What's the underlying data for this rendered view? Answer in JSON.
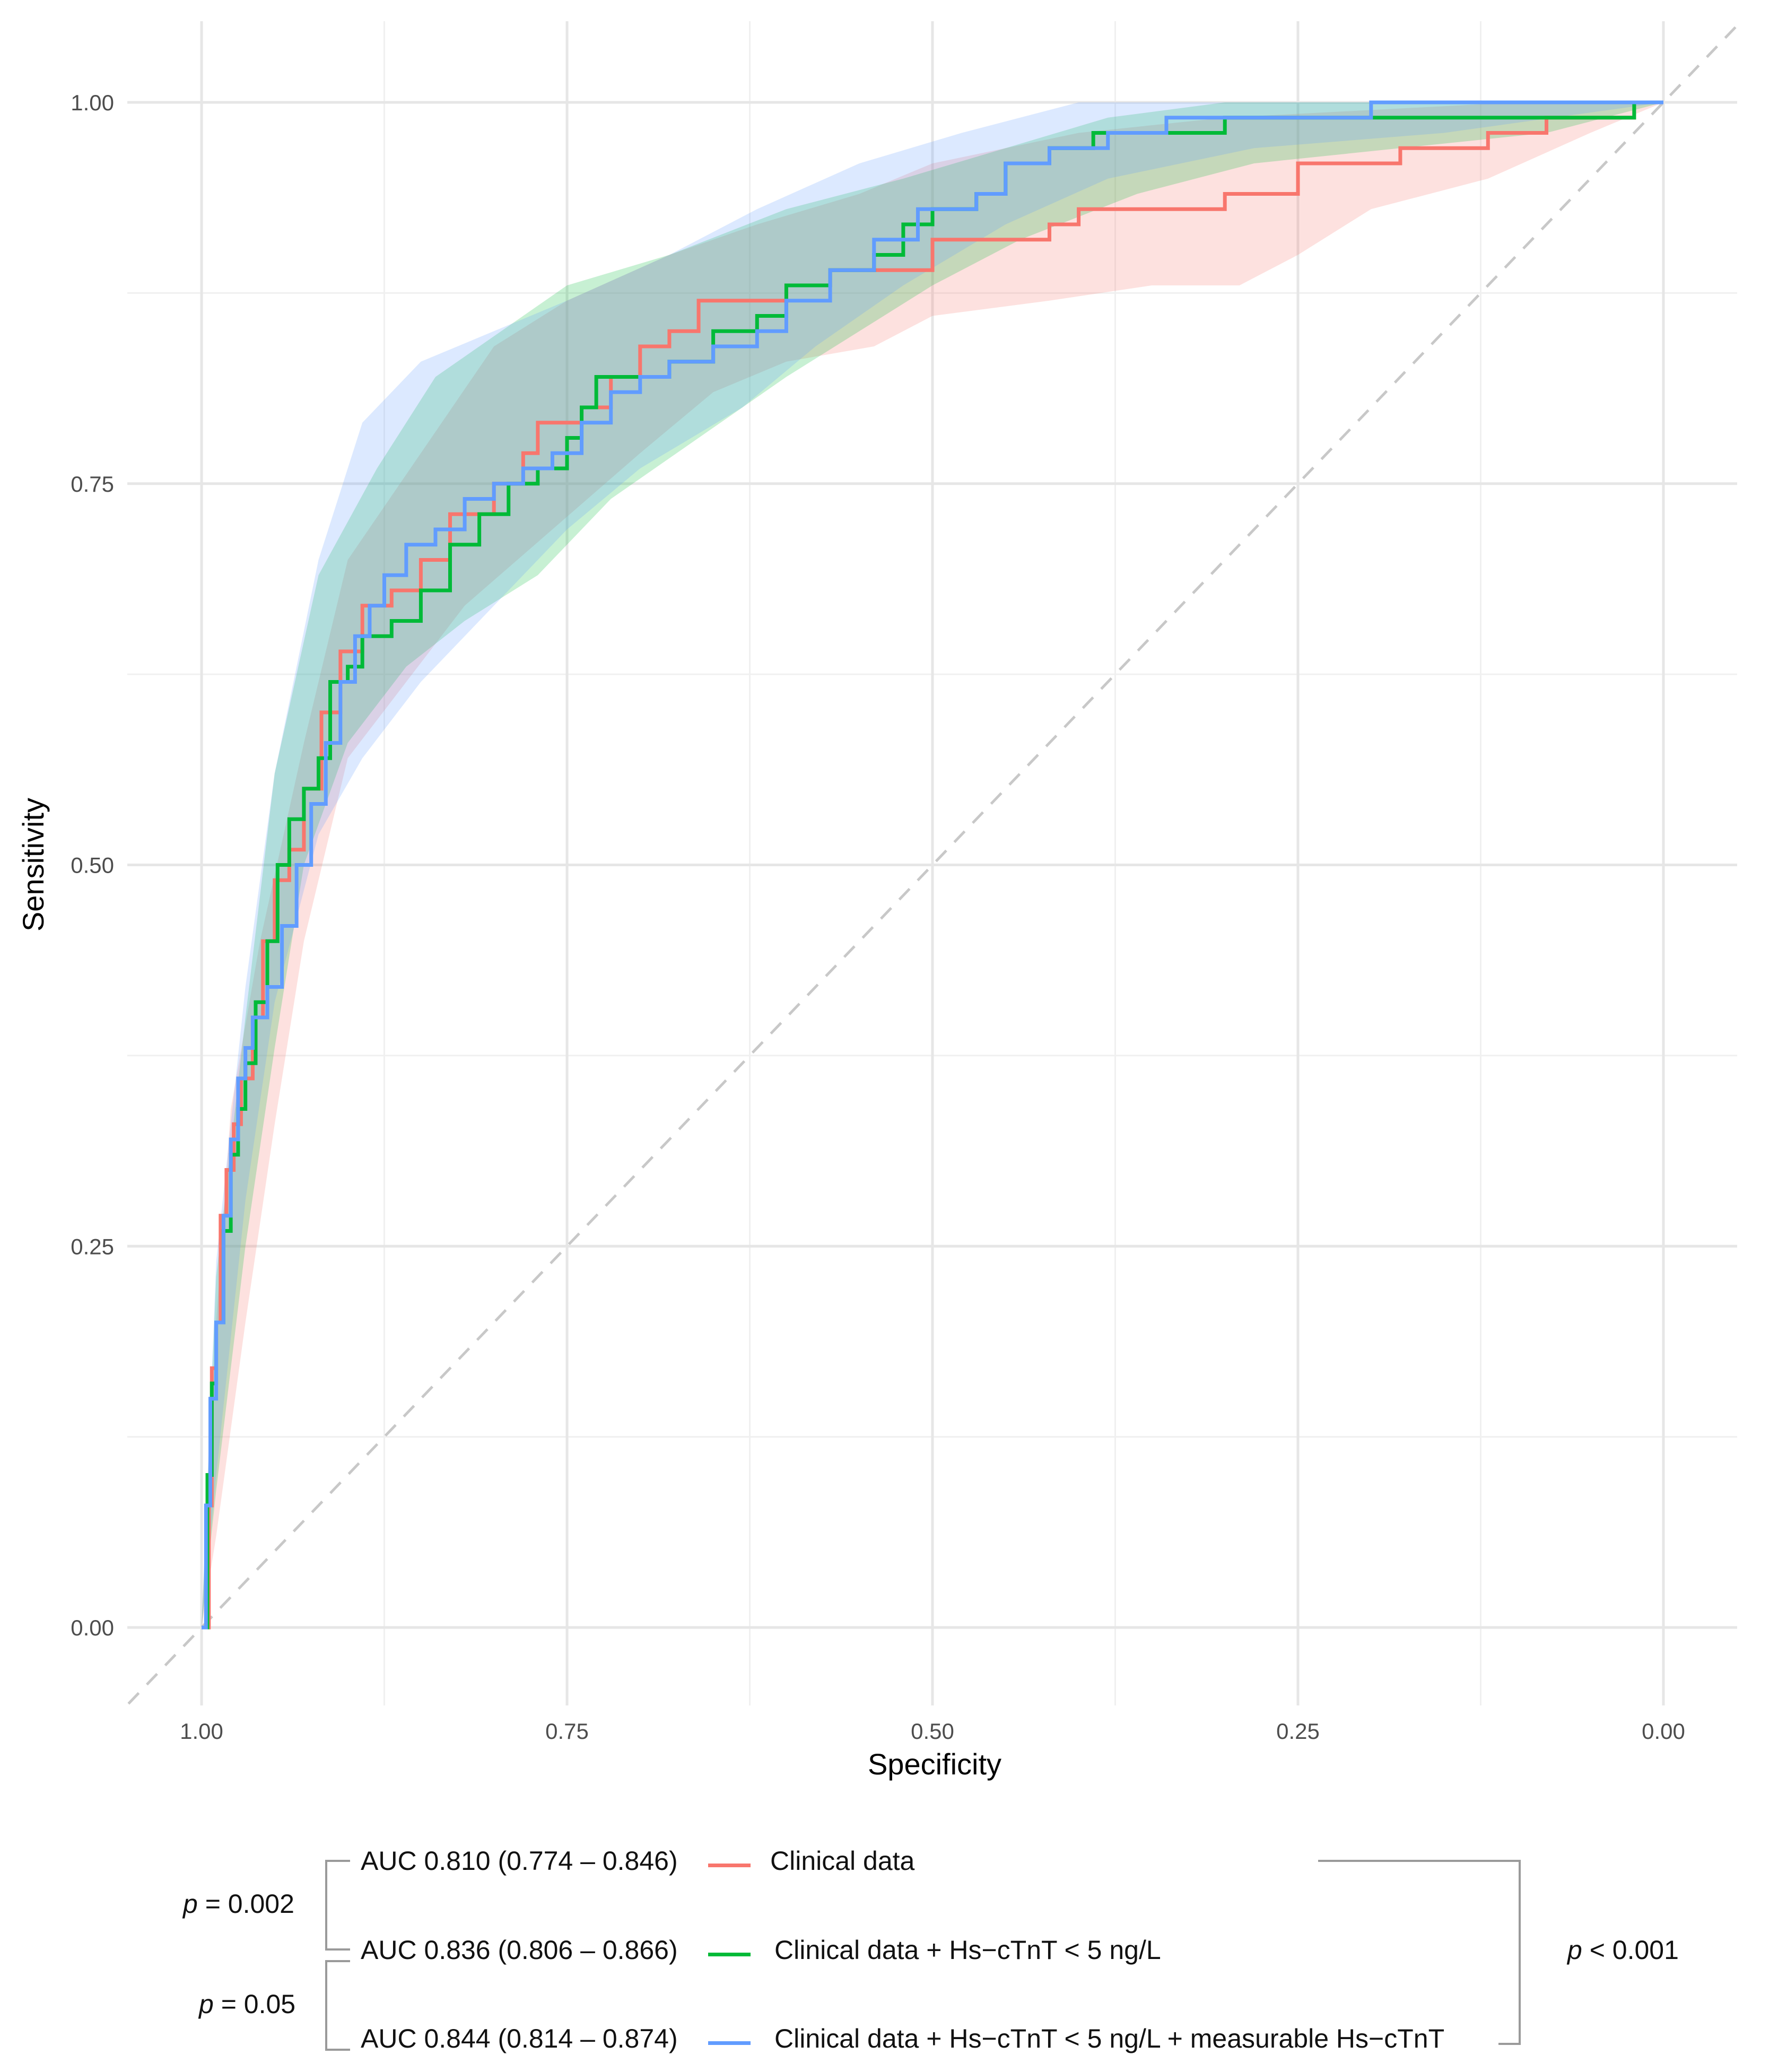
{
  "chart_data": {
    "type": "line",
    "title": "",
    "xlabel": "Specificity",
    "ylabel": "Sensitivity",
    "xlim": [
      1.05,
      -0.05
    ],
    "ylim": [
      -0.05,
      1.05
    ],
    "x_ticks": [
      {
        "v": 1.0,
        "label": "1.00"
      },
      {
        "v": 0.75,
        "label": "0.75"
      },
      {
        "v": 0.5,
        "label": "0.50"
      },
      {
        "v": 0.25,
        "label": "0.25"
      },
      {
        "v": 0.0,
        "label": "0.00"
      }
    ],
    "y_ticks": [
      {
        "v": 0.0,
        "label": "0.00"
      },
      {
        "v": 0.25,
        "label": "0.25"
      },
      {
        "v": 0.5,
        "label": "0.50"
      },
      {
        "v": 0.75,
        "label": "0.75"
      },
      {
        "v": 1.0,
        "label": "1.00"
      }
    ],
    "reference_line": {
      "from": [
        1.05,
        -0.05
      ],
      "to": [
        -0.05,
        1.05
      ],
      "style": "dashed",
      "color": "#c8c8c8"
    },
    "series": [
      {
        "name": "Clinical data",
        "auc": "AUC 0.810 (0.774 – 0.846)",
        "color": "#f8766d",
        "points": [
          [
            1.0,
            0.0
          ],
          [
            0.995,
            0.08
          ],
          [
            0.993,
            0.17
          ],
          [
            0.99,
            0.2
          ],
          [
            0.987,
            0.27
          ],
          [
            0.983,
            0.3
          ],
          [
            0.978,
            0.33
          ],
          [
            0.973,
            0.36
          ],
          [
            0.965,
            0.4
          ],
          [
            0.958,
            0.45
          ],
          [
            0.95,
            0.49
          ],
          [
            0.94,
            0.51
          ],
          [
            0.93,
            0.55
          ],
          [
            0.918,
            0.6
          ],
          [
            0.905,
            0.64
          ],
          [
            0.89,
            0.67
          ],
          [
            0.87,
            0.68
          ],
          [
            0.85,
            0.7
          ],
          [
            0.83,
            0.73
          ],
          [
            0.8,
            0.75
          ],
          [
            0.78,
            0.77
          ],
          [
            0.77,
            0.79
          ],
          [
            0.74,
            0.8
          ],
          [
            0.72,
            0.82
          ],
          [
            0.7,
            0.84
          ],
          [
            0.68,
            0.85
          ],
          [
            0.66,
            0.87
          ],
          [
            0.62,
            0.87
          ],
          [
            0.6,
            0.88
          ],
          [
            0.57,
            0.89
          ],
          [
            0.53,
            0.89
          ],
          [
            0.5,
            0.91
          ],
          [
            0.44,
            0.91
          ],
          [
            0.42,
            0.92
          ],
          [
            0.4,
            0.93
          ],
          [
            0.32,
            0.93
          ],
          [
            0.3,
            0.94
          ],
          [
            0.26,
            0.94
          ],
          [
            0.25,
            0.96
          ],
          [
            0.2,
            0.96
          ],
          [
            0.18,
            0.97
          ],
          [
            0.14,
            0.97
          ],
          [
            0.12,
            0.98
          ],
          [
            0.1,
            0.98
          ],
          [
            0.08,
            0.99
          ],
          [
            0.05,
            0.99
          ],
          [
            0.02,
            1.0
          ],
          [
            0.0,
            1.0
          ]
        ],
        "ci_upper": [
          [
            1.0,
            0.0
          ],
          [
            0.99,
            0.2
          ],
          [
            0.98,
            0.34
          ],
          [
            0.96,
            0.45
          ],
          [
            0.93,
            0.58
          ],
          [
            0.9,
            0.7
          ],
          [
            0.85,
            0.77
          ],
          [
            0.8,
            0.84
          ],
          [
            0.75,
            0.87
          ],
          [
            0.68,
            0.9
          ],
          [
            0.62,
            0.92
          ],
          [
            0.55,
            0.94
          ],
          [
            0.5,
            0.96
          ],
          [
            0.4,
            0.98
          ],
          [
            0.3,
            0.99
          ],
          [
            0.1,
            1.0
          ],
          [
            0.0,
            1.0
          ]
        ],
        "ci_lower": [
          [
            1.0,
            0.0
          ],
          [
            0.99,
            0.06
          ],
          [
            0.97,
            0.2
          ],
          [
            0.95,
            0.33
          ],
          [
            0.93,
            0.45
          ],
          [
            0.9,
            0.57
          ],
          [
            0.86,
            0.62
          ],
          [
            0.82,
            0.67
          ],
          [
            0.76,
            0.72
          ],
          [
            0.7,
            0.77
          ],
          [
            0.65,
            0.81
          ],
          [
            0.6,
            0.83
          ],
          [
            0.54,
            0.84
          ],
          [
            0.5,
            0.86
          ],
          [
            0.42,
            0.87
          ],
          [
            0.35,
            0.88
          ],
          [
            0.29,
            0.88
          ],
          [
            0.25,
            0.9
          ],
          [
            0.2,
            0.93
          ],
          [
            0.12,
            0.95
          ],
          [
            0.05,
            0.98
          ],
          [
            0.0,
            1.0
          ]
        ]
      },
      {
        "name": "Clinical data + Hs−cTnT < 5 ng/L",
        "auc": "AUC 0.836 (0.806 – 0.866)",
        "color": "#00ba38",
        "points": [
          [
            1.0,
            0.0
          ],
          [
            0.996,
            0.1
          ],
          [
            0.993,
            0.16
          ],
          [
            0.99,
            0.2
          ],
          [
            0.985,
            0.26
          ],
          [
            0.98,
            0.31
          ],
          [
            0.975,
            0.34
          ],
          [
            0.97,
            0.37
          ],
          [
            0.963,
            0.41
          ],
          [
            0.955,
            0.45
          ],
          [
            0.948,
            0.5
          ],
          [
            0.94,
            0.53
          ],
          [
            0.93,
            0.55
          ],
          [
            0.92,
            0.57
          ],
          [
            0.912,
            0.62
          ],
          [
            0.9,
            0.63
          ],
          [
            0.89,
            0.65
          ],
          [
            0.87,
            0.66
          ],
          [
            0.85,
            0.68
          ],
          [
            0.83,
            0.71
          ],
          [
            0.81,
            0.73
          ],
          [
            0.79,
            0.75
          ],
          [
            0.77,
            0.76
          ],
          [
            0.75,
            0.78
          ],
          [
            0.74,
            0.8
          ],
          [
            0.73,
            0.82
          ],
          [
            0.7,
            0.82
          ],
          [
            0.68,
            0.83
          ],
          [
            0.65,
            0.85
          ],
          [
            0.62,
            0.86
          ],
          [
            0.6,
            0.88
          ],
          [
            0.57,
            0.89
          ],
          [
            0.54,
            0.9
          ],
          [
            0.52,
            0.92
          ],
          [
            0.5,
            0.93
          ],
          [
            0.47,
            0.94
          ],
          [
            0.45,
            0.96
          ],
          [
            0.42,
            0.97
          ],
          [
            0.39,
            0.98
          ],
          [
            0.35,
            0.98
          ],
          [
            0.3,
            0.99
          ],
          [
            0.2,
            0.99
          ],
          [
            0.02,
            1.0
          ],
          [
            0.0,
            1.0
          ]
        ],
        "ci_upper": [
          [
            1.0,
            0.0
          ],
          [
            0.99,
            0.23
          ],
          [
            0.97,
            0.4
          ],
          [
            0.95,
            0.56
          ],
          [
            0.92,
            0.69
          ],
          [
            0.88,
            0.76
          ],
          [
            0.84,
            0.82
          ],
          [
            0.78,
            0.86
          ],
          [
            0.75,
            0.88
          ],
          [
            0.68,
            0.9
          ],
          [
            0.6,
            0.93
          ],
          [
            0.52,
            0.95
          ],
          [
            0.45,
            0.97
          ],
          [
            0.38,
            0.99
          ],
          [
            0.3,
            1.0
          ],
          [
            0.0,
            1.0
          ]
        ],
        "ci_lower": [
          [
            1.0,
            0.0
          ],
          [
            0.99,
            0.09
          ],
          [
            0.97,
            0.25
          ],
          [
            0.95,
            0.38
          ],
          [
            0.93,
            0.5
          ],
          [
            0.9,
            0.58
          ],
          [
            0.86,
            0.63
          ],
          [
            0.82,
            0.66
          ],
          [
            0.77,
            0.69
          ],
          [
            0.72,
            0.74
          ],
          [
            0.66,
            0.78
          ],
          [
            0.6,
            0.82
          ],
          [
            0.55,
            0.85
          ],
          [
            0.5,
            0.88
          ],
          [
            0.44,
            0.91
          ],
          [
            0.36,
            0.94
          ],
          [
            0.28,
            0.96
          ],
          [
            0.18,
            0.97
          ],
          [
            0.08,
            0.98
          ],
          [
            0.0,
            1.0
          ]
        ]
      },
      {
        "name": "Clinical data + Hs−cTnT < 5 ng/L + measurable Hs−cTnT",
        "auc": "AUC 0.844 (0.814 – 0.874)",
        "color": "#619cff",
        "points": [
          [
            1.0,
            0.0
          ],
          [
            0.997,
            0.08
          ],
          [
            0.994,
            0.15
          ],
          [
            0.99,
            0.2
          ],
          [
            0.985,
            0.27
          ],
          [
            0.98,
            0.32
          ],
          [
            0.975,
            0.36
          ],
          [
            0.97,
            0.38
          ],
          [
            0.965,
            0.4
          ],
          [
            0.955,
            0.42
          ],
          [
            0.945,
            0.46
          ],
          [
            0.935,
            0.5
          ],
          [
            0.925,
            0.54
          ],
          [
            0.915,
            0.58
          ],
          [
            0.905,
            0.62
          ],
          [
            0.895,
            0.65
          ],
          [
            0.885,
            0.67
          ],
          [
            0.875,
            0.69
          ],
          [
            0.86,
            0.71
          ],
          [
            0.84,
            0.72
          ],
          [
            0.82,
            0.74
          ],
          [
            0.8,
            0.75
          ],
          [
            0.78,
            0.76
          ],
          [
            0.76,
            0.77
          ],
          [
            0.74,
            0.79
          ],
          [
            0.72,
            0.81
          ],
          [
            0.7,
            0.82
          ],
          [
            0.68,
            0.83
          ],
          [
            0.65,
            0.84
          ],
          [
            0.62,
            0.85
          ],
          [
            0.6,
            0.87
          ],
          [
            0.57,
            0.89
          ],
          [
            0.54,
            0.91
          ],
          [
            0.51,
            0.93
          ],
          [
            0.47,
            0.94
          ],
          [
            0.45,
            0.96
          ],
          [
            0.42,
            0.97
          ],
          [
            0.38,
            0.98
          ],
          [
            0.34,
            0.99
          ],
          [
            0.22,
            0.99
          ],
          [
            0.2,
            1.0
          ],
          [
            0.0,
            1.0
          ]
        ],
        "ci_upper": [
          [
            1.0,
            0.0
          ],
          [
            0.99,
            0.24
          ],
          [
            0.97,
            0.42
          ],
          [
            0.95,
            0.56
          ],
          [
            0.92,
            0.7
          ],
          [
            0.89,
            0.79
          ],
          [
            0.85,
            0.83
          ],
          [
            0.8,
            0.85
          ],
          [
            0.75,
            0.87
          ],
          [
            0.68,
            0.9
          ],
          [
            0.62,
            0.93
          ],
          [
            0.55,
            0.96
          ],
          [
            0.48,
            0.98
          ],
          [
            0.4,
            1.0
          ],
          [
            0.0,
            1.0
          ]
        ],
        "ci_lower": [
          [
            1.0,
            0.0
          ],
          [
            0.99,
            0.1
          ],
          [
            0.97,
            0.28
          ],
          [
            0.95,
            0.41
          ],
          [
            0.92,
            0.52
          ],
          [
            0.89,
            0.57
          ],
          [
            0.85,
            0.62
          ],
          [
            0.8,
            0.67
          ],
          [
            0.75,
            0.72
          ],
          [
            0.7,
            0.76
          ],
          [
            0.63,
            0.8
          ],
          [
            0.58,
            0.84
          ],
          [
            0.52,
            0.88
          ],
          [
            0.45,
            0.92
          ],
          [
            0.38,
            0.95
          ],
          [
            0.28,
            0.97
          ],
          [
            0.15,
            0.98
          ],
          [
            0.0,
            1.0
          ]
        ]
      }
    ]
  },
  "legend": {
    "pairwise": [
      {
        "prefix": "p",
        "text": " = 0.002"
      },
      {
        "prefix": "p",
        "text": " = 0.05"
      }
    ],
    "overall": {
      "prefix": "p",
      "text": " < 0.001"
    }
  }
}
